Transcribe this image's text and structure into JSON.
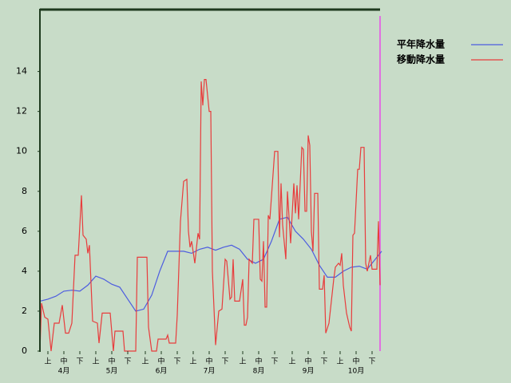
{
  "chart_data": {
    "type": "line",
    "xlim": [
      0,
      214
    ],
    "ylim": [
      0,
      17.1
    ],
    "yticks": [
      0,
      2,
      4,
      6,
      8,
      10,
      12,
      14
    ],
    "xticks": [
      {
        "value": 5,
        "label": "上"
      },
      {
        "value": 15,
        "label": "中"
      },
      {
        "value": 25,
        "label": "下"
      },
      {
        "value": 35,
        "label": "上"
      },
      {
        "value": 45,
        "label": "中"
      },
      {
        "value": 55,
        "label": "下"
      },
      {
        "value": 66,
        "label": "上"
      },
      {
        "value": 76,
        "label": "中"
      },
      {
        "value": 86,
        "label": "下"
      },
      {
        "value": 96,
        "label": "上"
      },
      {
        "value": 106,
        "label": "中"
      },
      {
        "value": 116,
        "label": "下"
      },
      {
        "value": 127,
        "label": "上"
      },
      {
        "value": 137,
        "label": "中"
      },
      {
        "value": 147,
        "label": "下"
      },
      {
        "value": 158,
        "label": "上"
      },
      {
        "value": 168,
        "label": "中"
      },
      {
        "value": 178,
        "label": "下"
      },
      {
        "value": 188,
        "label": "上"
      },
      {
        "value": 198,
        "label": "中"
      },
      {
        "value": 208,
        "label": "下"
      }
    ],
    "months": [
      {
        "value": 15,
        "label": "4月"
      },
      {
        "value": 45,
        "label": "5月"
      },
      {
        "value": 76,
        "label": "6月"
      },
      {
        "value": 106,
        "label": "7月"
      },
      {
        "value": 137,
        "label": "8月"
      },
      {
        "value": 168,
        "label": "9月"
      },
      {
        "value": 198,
        "label": "10月"
      }
    ],
    "legend": "upper right",
    "series": [
      {
        "name": "平年降水量",
        "color": "#4c5ce0",
        "x": [
          0,
          5,
          10,
          15,
          20,
          25,
          30,
          35,
          40,
          45,
          50,
          55,
          60,
          65,
          70,
          75,
          80,
          85,
          90,
          95,
          100,
          105,
          110,
          115,
          120,
          125,
          130,
          135,
          140,
          145,
          150,
          155,
          160,
          165,
          170,
          175,
          180,
          185,
          190,
          195,
          200,
          205,
          210,
          214
        ],
        "values": [
          2.5,
          2.6,
          2.75,
          3.0,
          3.05,
          3.0,
          3.3,
          3.75,
          3.6,
          3.35,
          3.2,
          2.6,
          2.0,
          2.1,
          2.8,
          4.0,
          5.0,
          5.0,
          5.0,
          4.9,
          5.1,
          5.2,
          5.05,
          5.2,
          5.3,
          5.1,
          4.6,
          4.4,
          4.6,
          5.5,
          6.6,
          6.7,
          6.0,
          5.6,
          5.1,
          4.3,
          3.7,
          3.7,
          4.0,
          4.2,
          4.25,
          4.1,
          4.6,
          5.0
        ]
      },
      {
        "name": "移動降水量",
        "color": "#e83c3c",
        "x": [
          0,
          1,
          3,
          5,
          7,
          9,
          12,
          14,
          16,
          18,
          20,
          22,
          24,
          26,
          27,
          29,
          30,
          31,
          33,
          36,
          37,
          39,
          44,
          46,
          47,
          52,
          53,
          60,
          61,
          67,
          68,
          70,
          73,
          74,
          79,
          80,
          81,
          85,
          86,
          88,
          90,
          92,
          93,
          94,
          95,
          97,
          99,
          100,
          101,
          102,
          103,
          104,
          106,
          107,
          108,
          110,
          112,
          114,
          116,
          117,
          119,
          120,
          121,
          122,
          125,
          127,
          128,
          129,
          130,
          131,
          133,
          134,
          137,
          138,
          139,
          140,
          141,
          142,
          143,
          144,
          147,
          149,
          150,
          151,
          152,
          154,
          155,
          157,
          159,
          160,
          161,
          162,
          164,
          165,
          166,
          167,
          168,
          169,
          170,
          171,
          172,
          174,
          175,
          177,
          178,
          179,
          181,
          184,
          185,
          187,
          188,
          189,
          190,
          192,
          194,
          195,
          196,
          197,
          199,
          200,
          201,
          203,
          204,
          205,
          207,
          208,
          210,
          211,
          212,
          213
        ],
        "values": [
          0,
          2.4,
          1.7,
          1.6,
          0,
          1.4,
          1.4,
          2.3,
          0.9,
          0.9,
          1.4,
          4.8,
          4.8,
          7.8,
          5.8,
          5.6,
          4.9,
          5.3,
          1.5,
          1.4,
          0.4,
          1.9,
          1.9,
          0,
          1.0,
          1.0,
          0,
          0,
          4.7,
          4.7,
          1.2,
          0,
          0,
          0.6,
          0.6,
          0.8,
          0.4,
          0.4,
          1.8,
          6.5,
          8.5,
          8.6,
          6.0,
          5.2,
          5.5,
          4.4,
          5.9,
          5.6,
          13.5,
          12.3,
          13.6,
          13.6,
          12.0,
          12.0,
          4.0,
          0.3,
          2.0,
          2.1,
          4.6,
          4.5,
          2.6,
          2.7,
          4.6,
          2.5,
          2.5,
          3.6,
          1.3,
          1.3,
          1.7,
          4.6,
          4.4,
          6.6,
          6.6,
          3.6,
          3.5,
          5.5,
          2.2,
          2.2,
          6.8,
          6.6,
          10.0,
          10.0,
          5.7,
          8.4,
          6.3,
          4.6,
          8.0,
          5.4,
          8.4,
          6.9,
          8.3,
          6.6,
          10.2,
          10.1,
          7.0,
          7.0,
          10.8,
          10.3,
          6.0,
          5.0,
          7.9,
          7.9,
          3.1,
          3.1,
          3.8,
          0.9,
          1.4,
          3.6,
          4.2,
          4.4,
          4.3,
          4.9,
          3.3,
          1.9,
          1.2,
          1.0,
          5.8,
          5.9,
          9.1,
          9.1,
          10.2,
          10.2,
          4.4,
          4.0,
          4.8,
          4.1,
          4.1,
          4.1,
          6.5,
          3.3
        ]
      }
    ]
  }
}
